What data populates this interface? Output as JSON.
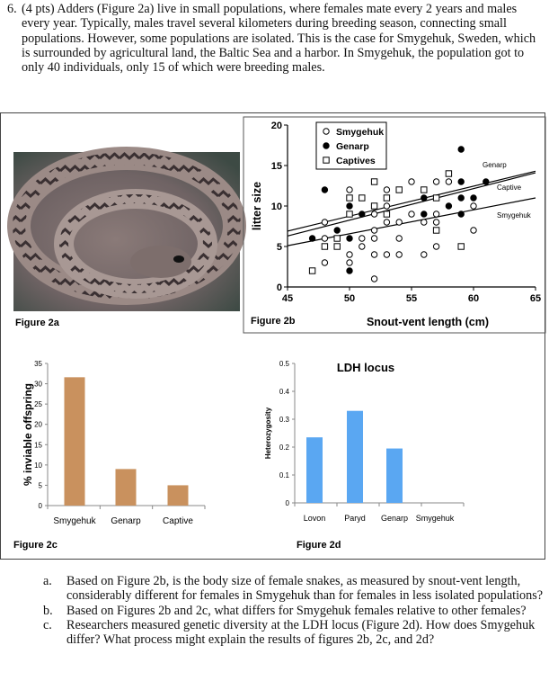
{
  "question": {
    "number": "6.",
    "text": "(4 pts) Adders (Figure 2a) live in small populations, where females mate every 2 years and males every year. Typically, males travel several kilometers during breeding season, connecting small populations. However, some populations are isolated. This is the case for Smygehuk, Sweden, which is surrounded by agricultural land, the Baltic Sea and a harbor. In Smygehuk, the population got to only 40 individuals, only 15 of which were breeding males."
  },
  "figures": {
    "fig2a_label": "Figure 2a",
    "fig2b_label": "Figure 2b",
    "fig2c_label": "Figure 2c",
    "fig2d_label": "Figure 2d"
  },
  "chart_data": [
    {
      "id": "fig2b",
      "type": "scatter",
      "xlabel": "Snout-vent length (cm)",
      "ylabel": "litter size",
      "xlim": [
        45,
        65
      ],
      "ylim": [
        0,
        20
      ],
      "xticks": [
        "45",
        "50",
        "55",
        "60",
        "65"
      ],
      "yticks": [
        "0",
        "5",
        "10",
        "15",
        "20"
      ],
      "legend_position": "top-left",
      "series": [
        {
          "name": "Smygehuk",
          "marker": "open-circle",
          "points": [
            [
              48,
              8
            ],
            [
              48,
              6
            ],
            [
              48,
              3
            ],
            [
              50,
              12
            ],
            [
              50,
              4
            ],
            [
              50,
              3
            ],
            [
              51,
              6
            ],
            [
              51,
              5
            ],
            [
              52,
              9
            ],
            [
              52,
              7
            ],
            [
              52,
              6
            ],
            [
              52,
              4
            ],
            [
              52,
              1
            ],
            [
              53,
              12
            ],
            [
              53,
              10
            ],
            [
              53,
              8
            ],
            [
              53,
              4
            ],
            [
              54,
              8
            ],
            [
              54,
              6
            ],
            [
              54,
              4
            ],
            [
              55,
              13
            ],
            [
              55,
              9
            ],
            [
              56,
              8
            ],
            [
              56,
              4
            ],
            [
              57,
              13
            ],
            [
              57,
              9
            ],
            [
              57,
              8
            ],
            [
              57,
              5
            ],
            [
              58,
              13
            ],
            [
              60,
              10
            ],
            [
              60,
              7
            ]
          ]
        },
        {
          "name": "Genarp",
          "marker": "filled-circle",
          "points": [
            [
              47,
              6
            ],
            [
              48,
              12
            ],
            [
              49,
              7
            ],
            [
              50,
              10
            ],
            [
              50,
              6
            ],
            [
              50,
              2
            ],
            [
              51,
              9
            ],
            [
              56,
              11
            ],
            [
              56,
              9
            ],
            [
              58,
              10
            ],
            [
              59,
              17
            ],
            [
              59,
              13
            ],
            [
              59,
              11
            ],
            [
              59,
              9
            ],
            [
              60,
              11
            ],
            [
              61,
              13
            ]
          ]
        },
        {
          "name": "Captives",
          "marker": "open-square",
          "points": [
            [
              47,
              2
            ],
            [
              48,
              5
            ],
            [
              49,
              6
            ],
            [
              49,
              5
            ],
            [
              50,
              11
            ],
            [
              50,
              9
            ],
            [
              51,
              11
            ],
            [
              52,
              13
            ],
            [
              52,
              10
            ],
            [
              53,
              11
            ],
            [
              53,
              9
            ],
            [
              54,
              12
            ],
            [
              56,
              12
            ],
            [
              57,
              11
            ],
            [
              57,
              7
            ],
            [
              58,
              14
            ],
            [
              59,
              5
            ]
          ]
        }
      ],
      "fit_lines": [
        {
          "label": "Genarp",
          "from": [
            45,
            6.9
          ],
          "to": [
            65,
            14.3
          ]
        },
        {
          "label": "Captive",
          "from": [
            45,
            6.3
          ],
          "to": [
            65,
            14.1
          ]
        },
        {
          "label": "Smygehuk",
          "from": [
            45,
            5.1
          ],
          "to": [
            65,
            11.0
          ]
        }
      ]
    },
    {
      "id": "fig2c",
      "type": "bar",
      "ylabel": "% inviable offspring",
      "categories": [
        "Smygehuk",
        "Genarp",
        "Captive"
      ],
      "values": [
        31.6,
        9,
        5
      ],
      "ylim": [
        0,
        35
      ],
      "yticks": [
        "0",
        "5",
        "10",
        "15",
        "20",
        "25",
        "30",
        "35"
      ],
      "color": "#C9915E"
    },
    {
      "id": "fig2d",
      "type": "bar",
      "title": "LDH locus",
      "ylabel": "Heterozygosity",
      "categories": [
        "Lovon",
        "Paryd",
        "Genarp",
        "Smygehuk"
      ],
      "values": [
        0.235,
        0.33,
        0.195,
        0
      ],
      "ylim": [
        0,
        0.5
      ],
      "yticks": [
        "0",
        "0.1",
        "0.2",
        "0.3",
        "0.4",
        "0.5"
      ],
      "color": "#5AA7F2"
    }
  ],
  "subquestions": [
    {
      "label": "a.",
      "text": "Based on Figure 2b, is the body size of female snakes, as measured by snout-vent length, considerably different for females in Smygehuk than for females in less isolated populations?"
    },
    {
      "label": "b.",
      "text": "Based on Figures 2b and 2c, what differs for Smygehuk females relative to other females?"
    },
    {
      "label": "c.",
      "text": "Researchers measured genetic diversity at the LDH locus (Figure 2d). How does Smygehuk differ? What process might explain the results of figures 2b, 2c, and 2d?"
    }
  ]
}
